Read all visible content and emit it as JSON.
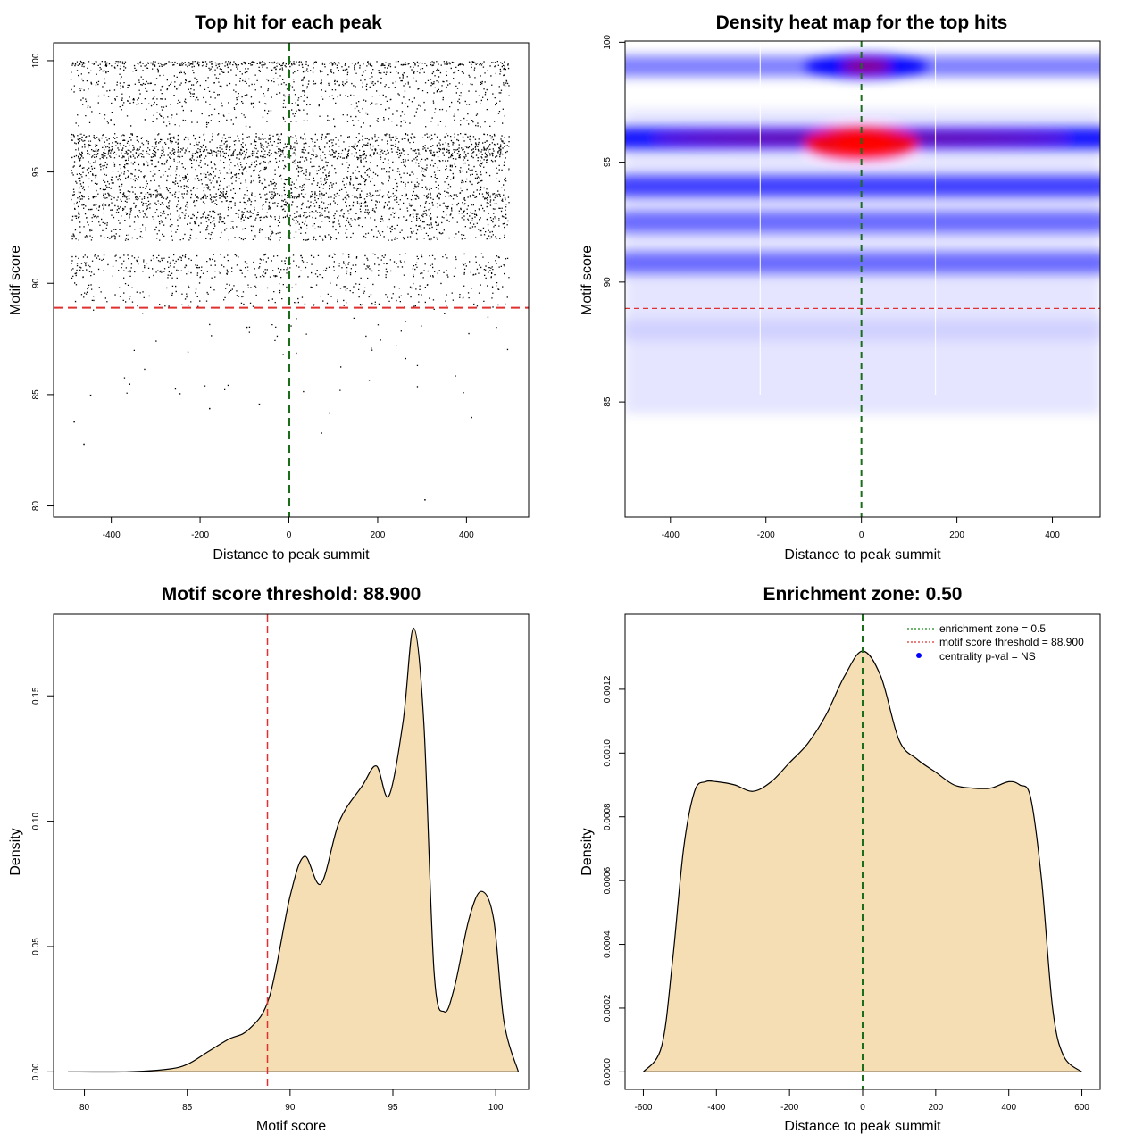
{
  "threshold_line_color": "#e03030",
  "zone_line_color": "#1a6e1a",
  "density_fill_color": "#f5deb3",
  "chart_data": [
    {
      "type": "scatter",
      "title": "Top hit for each peak",
      "xlabel": "Distance to peak summit",
      "ylabel": "Motif score",
      "xlim": [
        -530,
        540
      ],
      "ylim": [
        79.5,
        100.8
      ],
      "xticks": [
        "-400",
        "-200",
        "0",
        "200",
        "400"
      ],
      "yticks": [
        "80",
        "85",
        "90",
        "95",
        "100"
      ],
      "threshold": 88.9,
      "summit": 0,
      "point_color": "#000000",
      "x_range": [
        -492,
        495
      ],
      "score_levels": [
        {
          "score": 100.0,
          "weight": 0.45
        },
        {
          "score": 99.4,
          "weight": 0.35
        },
        {
          "score": 98.6,
          "weight": 0.4
        },
        {
          "score": 97.6,
          "weight": 0.25
        },
        {
          "score": 96.2,
          "weight": 1.0
        },
        {
          "score": 95.5,
          "weight": 0.75
        },
        {
          "score": 94.4,
          "weight": 0.85
        },
        {
          "score": 93.5,
          "weight": 0.8
        },
        {
          "score": 92.5,
          "weight": 0.6
        },
        {
          "score": 90.8,
          "weight": 0.55
        },
        {
          "score": 89.5,
          "weight": 0.25
        },
        {
          "score": 87.5,
          "weight": 0.06
        },
        {
          "score": 85.5,
          "weight": 0.015
        }
      ],
      "isolated_points": [
        [
          -485,
          83.8
        ],
        [
          -463,
          82.8
        ],
        [
          305,
          80.3
        ],
        [
          -448,
          85.0
        ],
        [
          -360,
          85.5
        ],
        [
          410,
          84.0
        ],
        [
          90,
          84.2
        ],
        [
          -180,
          84.4
        ],
        [
          72,
          83.3
        ],
        [
          -68,
          84.6
        ]
      ]
    },
    {
      "type": "heatmap",
      "title": "Density heat map for the top hits",
      "xlabel": "Distance to peak summit",
      "ylabel": "Motif score",
      "xlim": [
        -495,
        500
      ],
      "ylim": [
        80.2,
        100.05
      ],
      "xticks": [
        "-400",
        "-200",
        "0",
        "200",
        "400"
      ],
      "yticks": [
        "85",
        "90",
        "95",
        "100"
      ],
      "threshold": 88.9,
      "summit": 0,
      "colors": [
        "#ffffff",
        "#0000ff",
        "#ff0000"
      ],
      "white_lines_x": [
        -212,
        155
      ],
      "density_bands": [
        {
          "score": 99.0,
          "intensity": 0.55
        },
        {
          "score": 96.0,
          "intensity": 1.0
        },
        {
          "score": 94.0,
          "intensity": 0.8
        },
        {
          "score": 92.5,
          "intensity": 0.6
        },
        {
          "score": 90.8,
          "intensity": 0.6
        },
        {
          "score": 88.0,
          "intensity": 0.1
        }
      ],
      "hotspot": {
        "x": 0,
        "score": 95.8,
        "intensity": 1.0
      }
    },
    {
      "type": "area",
      "title": "Motif score threshold: 88.900",
      "xlabel": "Motif score",
      "ylabel": "Density",
      "xlim": [
        78.5,
        101.6
      ],
      "ylim": [
        -0.007,
        0.1825
      ],
      "xticks": [
        "80",
        "85",
        "90",
        "95",
        "100"
      ],
      "yticks": [
        "0.00",
        "0.05",
        "0.10",
        "0.15"
      ],
      "threshold": 88.9,
      "x": [
        79.2,
        82.0,
        84.0,
        85.0,
        86.0,
        87.0,
        88.0,
        89.0,
        90.0,
        90.7,
        91.5,
        92.4,
        93.5,
        94.2,
        94.8,
        95.5,
        96.0,
        96.5,
        97.0,
        97.5,
        98.0,
        98.7,
        99.3,
        99.9,
        100.4,
        101.1
      ],
      "y": [
        0.0,
        0.0,
        0.001,
        0.003,
        0.008,
        0.013,
        0.017,
        0.03,
        0.07,
        0.086,
        0.075,
        0.1,
        0.114,
        0.122,
        0.11,
        0.14,
        0.177,
        0.14,
        0.04,
        0.024,
        0.034,
        0.061,
        0.072,
        0.061,
        0.02,
        0.0
      ]
    },
    {
      "type": "area",
      "title": "Enrichment zone: 0.50",
      "xlabel": "Distance to peak summit",
      "ylabel": "Density",
      "xlim": [
        -650,
        650
      ],
      "ylim": [
        -5.5e-05,
        0.001435
      ],
      "xticks": [
        "-600",
        "-400",
        "-200",
        "0",
        "200",
        "400",
        "600"
      ],
      "yticks": [
        "0.0000",
        "0.0002",
        "0.0004",
        "0.0006",
        "0.0008",
        "0.0010",
        "0.0012"
      ],
      "summit": 0,
      "x": [
        -600,
        -550,
        -520,
        -490,
        -460,
        -430,
        -400,
        -350,
        -300,
        -250,
        -200,
        -150,
        -100,
        -50,
        0,
        50,
        100,
        150,
        200,
        250,
        300,
        350,
        400,
        430,
        460,
        490,
        520,
        550,
        600
      ],
      "y": [
        0.0,
        8e-05,
        0.00035,
        0.0007,
        0.00088,
        0.00091,
        0.00091,
        0.0009,
        0.00088,
        0.00091,
        0.00097,
        0.00103,
        0.00112,
        0.00124,
        0.00132,
        0.00124,
        0.00104,
        0.00098,
        0.00094,
        0.0009,
        0.00089,
        0.00089,
        0.00091,
        0.0009,
        0.00086,
        0.0006,
        0.0002,
        5e-05,
        0.0
      ],
      "legend": {
        "position": "top-right",
        "entries": [
          {
            "label": "enrichment zone = 0.5",
            "style": "dotted-line",
            "color": "#1a8a1a"
          },
          {
            "label": "motif score threshold = 88.900",
            "style": "dotted-line",
            "color": "#e03030"
          },
          {
            "label": "centrality p-val = NS",
            "style": "point",
            "color": "#0000ff"
          }
        ]
      }
    }
  ]
}
